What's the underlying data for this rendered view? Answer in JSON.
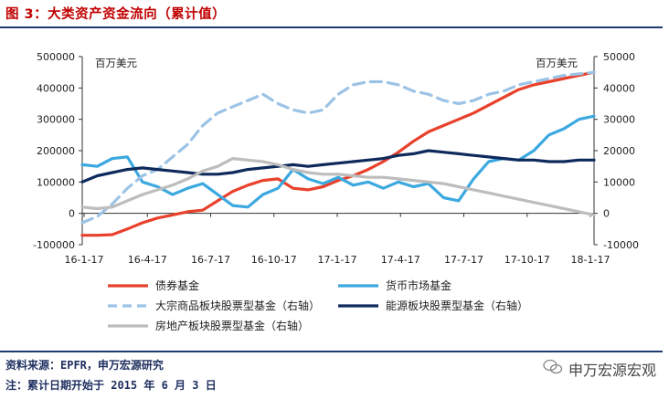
{
  "header": {
    "title": "图 3：大类资产资金流向（累计值）"
  },
  "footer": {
    "source": "资料来源：EPFR，申万宏源研究",
    "note": "注：累计日期开始于 2015 年 6 月 3 日",
    "brand": "申万宏源宏观"
  },
  "chart_data": {
    "type": "line",
    "unit_left": "百万美元",
    "unit_right": "百万美元",
    "x_ticks": [
      "16-1-17",
      "16-4-17",
      "16-7-17",
      "16-10-17",
      "17-1-17",
      "17-4-17",
      "17-7-17",
      "17-10-17",
      "18-1-17"
    ],
    "ylim_left": [
      -100000,
      500000
    ],
    "ylim_right": [
      -10000,
      50000
    ],
    "yticks_left": [
      "500000",
      "400000",
      "300000",
      "200000",
      "100000",
      "0",
      "-100000"
    ],
    "yticks_right": [
      "50000",
      "40000",
      "30000",
      "20000",
      "10000",
      "0",
      "-10000"
    ],
    "grid": false,
    "legend_position": "bottom",
    "series": [
      {
        "name": "债券基金",
        "axis": "left",
        "color": "#e8412c",
        "dash": false,
        "points": [
          [
            0,
            -70000
          ],
          [
            1,
            -70000
          ],
          [
            2,
            -68000
          ],
          [
            3,
            -50000
          ],
          [
            4,
            -30000
          ],
          [
            5,
            -15000
          ],
          [
            6,
            -5000
          ],
          [
            7,
            5000
          ],
          [
            8,
            10000
          ],
          [
            9,
            40000
          ],
          [
            10,
            70000
          ],
          [
            11,
            90000
          ],
          [
            12,
            105000
          ],
          [
            13,
            110000
          ],
          [
            14,
            80000
          ],
          [
            15,
            75000
          ],
          [
            16,
            85000
          ],
          [
            17,
            105000
          ],
          [
            18,
            120000
          ],
          [
            19,
            140000
          ],
          [
            20,
            165000
          ],
          [
            21,
            195000
          ],
          [
            22,
            230000
          ],
          [
            23,
            260000
          ],
          [
            24,
            280000
          ],
          [
            25,
            300000
          ],
          [
            26,
            320000
          ],
          [
            27,
            345000
          ],
          [
            28,
            370000
          ],
          [
            29,
            395000
          ],
          [
            30,
            410000
          ],
          [
            31,
            420000
          ],
          [
            32,
            430000
          ],
          [
            33,
            440000
          ],
          [
            34,
            450000
          ]
        ]
      },
      {
        "name": "货币市场基金",
        "axis": "left",
        "color": "#3ba8e0",
        "dash": false,
        "points": [
          [
            0,
            155000
          ],
          [
            1,
            150000
          ],
          [
            2,
            175000
          ],
          [
            3,
            180000
          ],
          [
            4,
            100000
          ],
          [
            5,
            85000
          ],
          [
            6,
            60000
          ],
          [
            7,
            80000
          ],
          [
            8,
            95000
          ],
          [
            9,
            60000
          ],
          [
            10,
            25000
          ],
          [
            11,
            20000
          ],
          [
            12,
            60000
          ],
          [
            13,
            80000
          ],
          [
            14,
            140000
          ],
          [
            15,
            110000
          ],
          [
            16,
            95000
          ],
          [
            17,
            115000
          ],
          [
            18,
            90000
          ],
          [
            19,
            100000
          ],
          [
            20,
            80000
          ],
          [
            21,
            100000
          ],
          [
            22,
            85000
          ],
          [
            23,
            95000
          ],
          [
            24,
            50000
          ],
          [
            25,
            40000
          ],
          [
            26,
            110000
          ],
          [
            27,
            165000
          ],
          [
            28,
            175000
          ],
          [
            29,
            170000
          ],
          [
            30,
            200000
          ],
          [
            31,
            250000
          ],
          [
            32,
            270000
          ],
          [
            33,
            300000
          ],
          [
            34,
            310000
          ]
        ]
      },
      {
        "name": "大宗商品板块股票型基金（右轴）",
        "axis": "right",
        "color": "#9cc3e6",
        "dash": true,
        "points": [
          [
            0,
            -3000
          ],
          [
            1,
            -1000
          ],
          [
            2,
            3000
          ],
          [
            3,
            8000
          ],
          [
            4,
            12000
          ],
          [
            5,
            14000
          ],
          [
            6,
            18000
          ],
          [
            7,
            22000
          ],
          [
            8,
            28000
          ],
          [
            9,
            32000
          ],
          [
            10,
            34000
          ],
          [
            11,
            36000
          ],
          [
            12,
            38000
          ],
          [
            13,
            35000
          ],
          [
            14,
            33000
          ],
          [
            15,
            32000
          ],
          [
            16,
            33000
          ],
          [
            17,
            38000
          ],
          [
            18,
            41000
          ],
          [
            19,
            42000
          ],
          [
            20,
            42000
          ],
          [
            21,
            41000
          ],
          [
            22,
            39000
          ],
          [
            23,
            38000
          ],
          [
            24,
            36000
          ],
          [
            25,
            35000
          ],
          [
            26,
            36000
          ],
          [
            27,
            38000
          ],
          [
            28,
            39000
          ],
          [
            29,
            41000
          ],
          [
            30,
            42000
          ],
          [
            31,
            43000
          ],
          [
            32,
            44000
          ],
          [
            33,
            44500
          ],
          [
            34,
            45000
          ]
        ]
      },
      {
        "name": "能源板块股票型基金（右轴）",
        "axis": "right",
        "color": "#0e2a5c",
        "dash": false,
        "points": [
          [
            0,
            10000
          ],
          [
            1,
            12000
          ],
          [
            2,
            13000
          ],
          [
            3,
            14000
          ],
          [
            4,
            14500
          ],
          [
            5,
            14000
          ],
          [
            6,
            13500
          ],
          [
            7,
            13000
          ],
          [
            8,
            12500
          ],
          [
            9,
            12500
          ],
          [
            10,
            13000
          ],
          [
            11,
            14000
          ],
          [
            12,
            14500
          ],
          [
            13,
            15000
          ],
          [
            14,
            15500
          ],
          [
            15,
            15000
          ],
          [
            16,
            15500
          ],
          [
            17,
            16000
          ],
          [
            18,
            16500
          ],
          [
            19,
            17000
          ],
          [
            20,
            17500
          ],
          [
            21,
            18500
          ],
          [
            22,
            19000
          ],
          [
            23,
            20000
          ],
          [
            24,
            19500
          ],
          [
            25,
            19000
          ],
          [
            26,
            18500
          ],
          [
            27,
            18000
          ],
          [
            28,
            17500
          ],
          [
            29,
            17000
          ],
          [
            30,
            17000
          ],
          [
            31,
            16500
          ],
          [
            32,
            16500
          ],
          [
            33,
            17000
          ],
          [
            34,
            17000
          ]
        ]
      },
      {
        "name": "房地产板块股票型基金（右轴）",
        "axis": "right",
        "color": "#bdbdbd",
        "dash": false,
        "points": [
          [
            0,
            2000
          ],
          [
            1,
            1500
          ],
          [
            2,
            2000
          ],
          [
            3,
            4000
          ],
          [
            4,
            6000
          ],
          [
            5,
            7500
          ],
          [
            6,
            9000
          ],
          [
            7,
            11000
          ],
          [
            8,
            13500
          ],
          [
            9,
            15000
          ],
          [
            10,
            17500
          ],
          [
            11,
            17000
          ],
          [
            12,
            16500
          ],
          [
            13,
            15500
          ],
          [
            14,
            14000
          ],
          [
            15,
            13000
          ],
          [
            16,
            12500
          ],
          [
            17,
            12500
          ],
          [
            18,
            12000
          ],
          [
            19,
            11500
          ],
          [
            20,
            11500
          ],
          [
            21,
            11000
          ],
          [
            22,
            10500
          ],
          [
            23,
            10000
          ],
          [
            24,
            9500
          ],
          [
            25,
            8500
          ],
          [
            26,
            7500
          ],
          [
            27,
            6500
          ],
          [
            28,
            5500
          ],
          [
            29,
            4500
          ],
          [
            30,
            3500
          ],
          [
            31,
            2500
          ],
          [
            32,
            1500
          ],
          [
            33,
            500
          ],
          [
            34,
            -500
          ]
        ]
      }
    ]
  }
}
